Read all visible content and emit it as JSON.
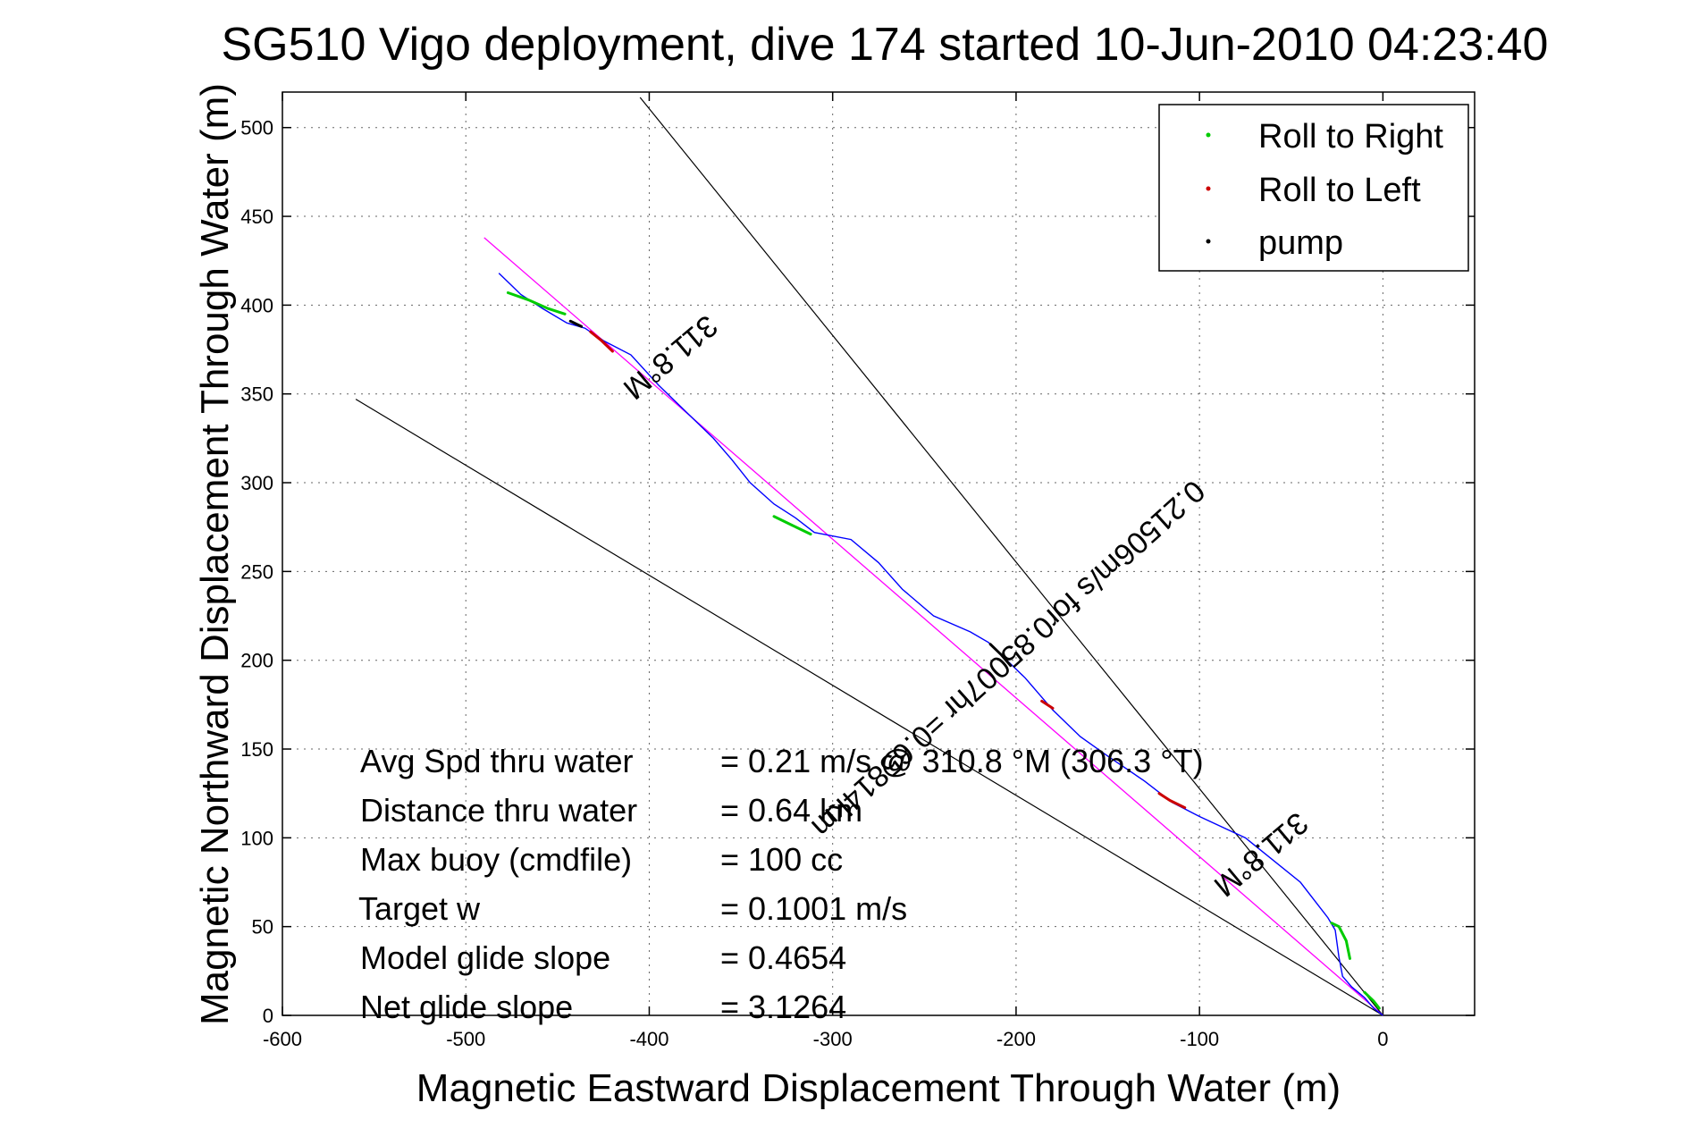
{
  "chart_data": {
    "type": "line",
    "title": "SG510 Vigo deployment, dive 174 started 10-Jun-2010 04:23:40",
    "xlabel": "Magnetic Eastward Displacement Through Water (m)",
    "ylabel": "Magnetic Northward Displacement Through Water (m)",
    "xlim": [
      -600,
      50
    ],
    "ylim": [
      0,
      520
    ],
    "xticks": [
      -600,
      -500,
      -400,
      -300,
      -200,
      -100,
      0
    ],
    "yticks": [
      0,
      50,
      100,
      150,
      200,
      250,
      300,
      350,
      400,
      450,
      500
    ],
    "grid": true,
    "legend_position": "top-right",
    "legend": [
      {
        "label": "Roll to Right",
        "color": "#00cc00"
      },
      {
        "label": "Roll to Left",
        "color": "#cc0000"
      },
      {
        "label": "pump",
        "color": "#000000"
      }
    ],
    "track": {
      "color": "#0000ff",
      "x": [
        0,
        -5,
        -10,
        -17,
        -22,
        -24,
        -26,
        -30,
        -45,
        -75,
        -100,
        -115,
        -130,
        -150,
        -165,
        -180,
        -195,
        -205,
        -215,
        -225,
        -245,
        -262,
        -275,
        -290,
        -310,
        -320,
        -332,
        -345,
        -355,
        -365,
        -380,
        -395,
        -410,
        -425,
        -435,
        -445,
        -458,
        -470,
        -476,
        -482
      ],
      "y": [
        0,
        4,
        10,
        16,
        22,
        33,
        48,
        55,
        75,
        100,
        112,
        120,
        132,
        146,
        157,
        172,
        190,
        200,
        210,
        216,
        225,
        240,
        255,
        268,
        272,
        280,
        288,
        300,
        313,
        325,
        340,
        355,
        372,
        380,
        387,
        390,
        398,
        406,
        412,
        418
      ]
    },
    "heading_line": {
      "color": "#ff00ff",
      "x": [
        0,
        -490
      ],
      "y": [
        0,
        438
      ]
    },
    "bounding_lines": [
      {
        "color": "#000000",
        "x": [
          0,
          -405
        ],
        "y": [
          0,
          517
        ]
      },
      {
        "color": "#000000",
        "x": [
          0,
          -560
        ],
        "y": [
          0,
          347
        ]
      }
    ],
    "highlights": [
      {
        "kind": "roll_right",
        "color": "#00cc00",
        "x": [
          -18,
          -20,
          -24,
          -28
        ],
        "y": [
          32,
          42,
          50,
          52
        ]
      },
      {
        "kind": "roll_right",
        "color": "#00cc00",
        "x": [
          -2,
          -5,
          -10
        ],
        "y": [
          4,
          8,
          13
        ]
      },
      {
        "kind": "roll_right",
        "color": "#00cc00",
        "x": [
          -332,
          -322,
          -312
        ],
        "y": [
          281,
          276,
          271
        ]
      },
      {
        "kind": "roll_right",
        "color": "#00cc00",
        "x": [
          -477,
          -466,
          -455,
          -446
        ],
        "y": [
          407,
          403,
          398,
          395
        ]
      },
      {
        "kind": "roll_left",
        "color": "#cc0000",
        "x": [
          -122,
          -116,
          -108
        ],
        "y": [
          125,
          121,
          117
        ]
      },
      {
        "kind": "roll_left",
        "color": "#cc0000",
        "x": [
          -186,
          -180
        ],
        "y": [
          177,
          173
        ]
      },
      {
        "kind": "roll_left",
        "color": "#cc0000",
        "x": [
          -432,
          -426,
          -420
        ],
        "y": [
          385,
          380,
          374
        ]
      },
      {
        "kind": "pump",
        "color": "#000000",
        "x": [
          -214,
          -208,
          -203
        ],
        "y": [
          209,
          203,
          197
        ]
      },
      {
        "kind": "pump",
        "color": "#000000",
        "x": [
          -443,
          -437
        ],
        "y": [
          391,
          388
        ]
      }
    ],
    "annotations": [
      {
        "text": "311.8°M",
        "x": -392,
        "y": 375,
        "angle": 140
      },
      {
        "text": "0.21506m/s for0.85007hr =0.65814km",
        "x": -208,
        "y": 205,
        "angle": 138
      },
      {
        "text": "311.8°M",
        "x": -70,
        "y": 95,
        "angle": 140
      }
    ],
    "stats": [
      {
        "label": "Avg Spd thru water",
        "value": "=  0.21 m/s @ 310.8 °M (306.3 °T)"
      },
      {
        "label": "Distance thru water",
        "value": "=  0.64 km"
      },
      {
        "label": "Max buoy (cmdfile)",
        "value": "= 100 cc"
      },
      {
        "label": "Target w",
        "value": "= 0.1001 m/s"
      },
      {
        "label": "Model glide slope",
        "value": "= 0.4654"
      },
      {
        "label": "Net glide slope",
        "value": "= 3.1264"
      }
    ]
  }
}
